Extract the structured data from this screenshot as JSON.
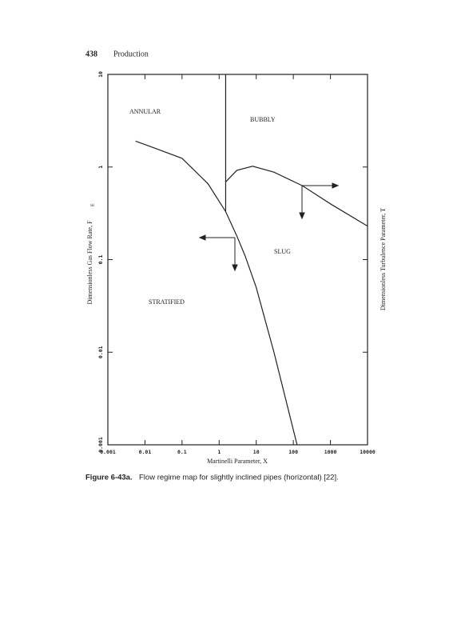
{
  "header": {
    "page_number": "438",
    "section": "Production"
  },
  "chart_data": {
    "type": "line",
    "xlabel": "Martinelli Parameter, X",
    "ylabel": "Dimensionless Gas Flow Rate, F",
    "ylabel_subscript": "E",
    "y2label": "Dimensionless Turbulence Parameter, T",
    "xscale": "log",
    "yscale": "log",
    "xlim": [
      0.001,
      10000
    ],
    "ylim": [
      0.001,
      10
    ],
    "xticks": [
      0.001,
      0.01,
      0.1,
      1,
      10,
      100,
      1000,
      10000
    ],
    "yticks": [
      0.001,
      0.01,
      0.1,
      1,
      10
    ],
    "series": [
      {
        "color": "#222222",
        "x": [
          0.0056,
          0.02,
          0.1,
          0.5,
          1.5,
          3,
          5,
          10,
          30,
          126
        ],
        "values": [
          1.9,
          1.58,
          1.24,
          0.66,
          0.33,
          0.18,
          0.11,
          0.05,
          0.01,
          0.001
        ]
      },
      {
        "color": "#222222",
        "x": [
          1.5,
          1.5
        ],
        "values": [
          0.33,
          10
        ]
      },
      {
        "color": "#222222",
        "x": [
          1.5,
          3,
          8,
          30,
          173,
          1000,
          10000
        ],
        "values": [
          0.69,
          0.92,
          1.02,
          0.88,
          0.63,
          0.4,
          0.23
        ]
      }
    ],
    "annotations": [
      "ANNULAR",
      "BUBBLY",
      "SLUG",
      "STRATIFIED"
    ]
  },
  "caption": {
    "label": "Figure 6-43a.",
    "text": "Flow regime map for slightly inclined pipes (horizontal) [22]."
  }
}
